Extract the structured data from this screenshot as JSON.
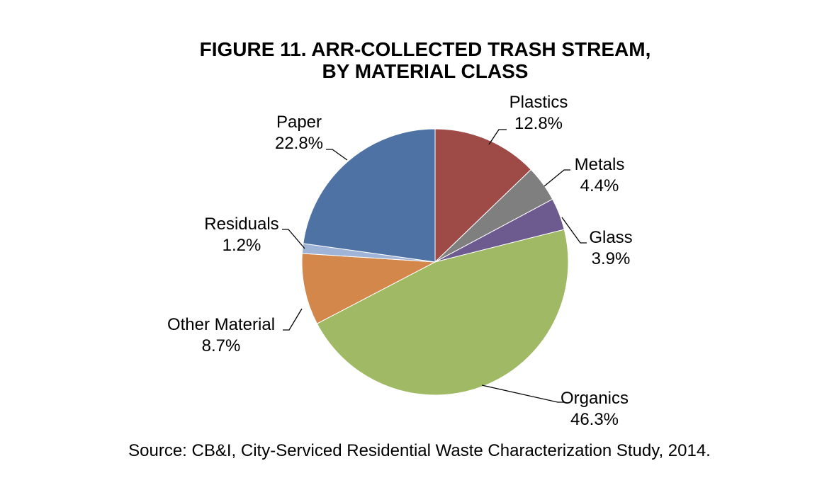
{
  "chart_data": {
    "type": "pie",
    "title_lines": [
      "FIGURE 11.  ARR-COLLECTED TRASH STREAM,",
      "BY MATERIAL CLASS"
    ],
    "slices": [
      {
        "label": "Plastics",
        "value": 12.8,
        "display": "12.8%",
        "color": "#9E4A46"
      },
      {
        "label": "Metals",
        "value": 4.4,
        "display": "4.4%",
        "color": "#7F7F7F"
      },
      {
        "label": "Glass",
        "value": 3.9,
        "display": "3.9%",
        "color": "#6D5A8E"
      },
      {
        "label": "Organics",
        "value": 46.3,
        "display": "46.3%",
        "color": "#A0B964"
      },
      {
        "label": "Other Material",
        "value": 8.7,
        "display": "8.7%",
        "color": "#D3874B"
      },
      {
        "label": "Residuals",
        "value": 1.2,
        "display": "1.2%",
        "color": "#9FB4D6"
      },
      {
        "label": "Paper",
        "value": 22.8,
        "display": "22.8%",
        "color": "#4E72A4"
      }
    ],
    "start_angle": "12 o'clock",
    "direction": "clockwise",
    "legend": "none (data labels)"
  },
  "source": "Source:  CB&I, City-Serviced Residential Waste Characterization Study, 2014."
}
